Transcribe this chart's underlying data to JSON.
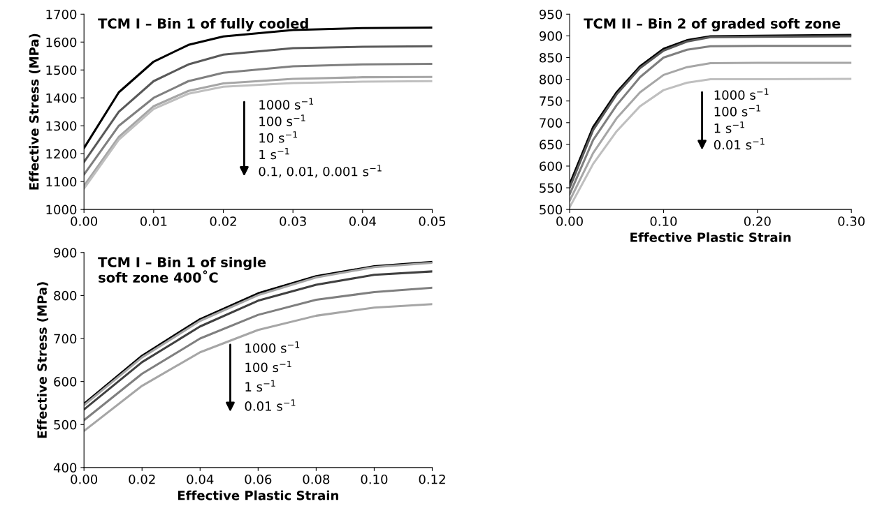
{
  "chart_data": [
    {
      "type": "line",
      "title": "TCM I – Bin 1 of fully cooled",
      "ylabel": "Effective Stress (MPa)",
      "x": [
        0,
        0.005,
        0.01,
        0.015,
        0.02,
        0.03,
        0.04,
        0.05
      ],
      "series": [
        {
          "color": "#000000",
          "values": [
            1220,
            1420,
            1530,
            1590,
            1620,
            1643,
            1650,
            1652
          ]
        },
        {
          "color": "#595959",
          "values": [
            1170,
            1350,
            1460,
            1520,
            1555,
            1578,
            1583,
            1585
          ]
        },
        {
          "color": "#7f7f7f",
          "values": [
            1125,
            1300,
            1400,
            1460,
            1490,
            1513,
            1520,
            1522
          ]
        },
        {
          "color": "#a6a6a6",
          "values": [
            1085,
            1260,
            1370,
            1425,
            1452,
            1468,
            1474,
            1475
          ]
        },
        {
          "color": "#bfbfbf",
          "values": [
            1075,
            1250,
            1360,
            1415,
            1440,
            1453,
            1458,
            1460
          ]
        }
      ],
      "xlim": [
        0,
        0.05
      ],
      "xticks": [
        {
          "value": 0,
          "label": "0.00"
        },
        {
          "value": 0.01,
          "label": "0.01"
        },
        {
          "value": 0.02,
          "label": "0.02"
        },
        {
          "value": 0.03,
          "label": "0.03"
        },
        {
          "value": 0.04,
          "label": "0.04"
        },
        {
          "value": 0.05,
          "label": "0.05"
        }
      ],
      "ylim": [
        1000,
        1700
      ],
      "yticks": [
        1000,
        1100,
        1200,
        1300,
        1400,
        1500,
        1600,
        1700
      ],
      "grid": false,
      "legend": false,
      "marker": "none",
      "line_style": "solid",
      "annotations": [
        "1000 s$^{−1}$",
        "100 s$^{−1}$",
        "10 s$^{−1}$",
        "1 s$^{−1}$",
        "0.1, 0.01, 0.001 s$^{−1}$"
      ]
    },
    {
      "type": "line",
      "title": "TCM II – Bin 2 of graded soft zone",
      "xlabel": "Effective Plastic Strain",
      "x": [
        0,
        0.025,
        0.05,
        0.075,
        0.1,
        0.125,
        0.15,
        0.2,
        0.3
      ],
      "series": [
        {
          "color": "#000000",
          "values": [
            558,
            690,
            770,
            830,
            870,
            890,
            899,
            900,
            902
          ]
        },
        {
          "color": "#595959",
          "values": [
            550,
            683,
            765,
            826,
            866,
            887,
            897,
            898,
            899
          ]
        },
        {
          "color": "#7f7f7f",
          "values": [
            535,
            660,
            740,
            805,
            850,
            868,
            876,
            877,
            877
          ]
        },
        {
          "color": "#a6a6a6",
          "values": [
            520,
            630,
            710,
            770,
            810,
            828,
            837,
            838,
            838
          ]
        },
        {
          "color": "#bfbfbf",
          "values": [
            505,
            605,
            680,
            738,
            775,
            792,
            800,
            800,
            801
          ]
        }
      ],
      "xlim": [
        0,
        0.3
      ],
      "xticks": [
        {
          "value": 0,
          "label": "0.00"
        },
        {
          "value": 0.1,
          "label": "0.10"
        },
        {
          "value": 0.2,
          "label": "0.20"
        },
        {
          "value": 0.3,
          "label": "0.30"
        }
      ],
      "ylim": [
        500,
        950
      ],
      "yticks": [
        500,
        550,
        600,
        650,
        700,
        750,
        800,
        850,
        900,
        950
      ],
      "grid": false,
      "legend": false,
      "marker": "none",
      "line_style": "solid",
      "annotations": [
        "1000 s$^{−1}$",
        "100 s$^{−1}$",
        "1 s$^{−1}$",
        "0.01 s$^{−1}$"
      ]
    },
    {
      "type": "line",
      "title": "TCM I – Bin 1 of single\nsoft zone 400˚C",
      "xlabel": "Effective Plastic Strain",
      "ylabel": "Effective Stress (MPa)",
      "x": [
        0,
        0.02,
        0.04,
        0.06,
        0.08,
        0.1,
        0.12
      ],
      "series": [
        {
          "color": "#000000",
          "values": [
            548,
            660,
            745,
            805,
            845,
            868,
            878
          ]
        },
        {
          "color": "#a6a6a6",
          "values": [
            545,
            656,
            741,
            801,
            842,
            866,
            876
          ]
        },
        {
          "color": "#404040",
          "values": [
            535,
            645,
            728,
            788,
            825,
            848,
            856
          ]
        },
        {
          "color": "#7f7f7f",
          "values": [
            510,
            618,
            700,
            755,
            790,
            808,
            818
          ]
        },
        {
          "color": "#a6a6a6",
          "values": [
            485,
            590,
            668,
            720,
            753,
            772,
            780
          ]
        }
      ],
      "xlim": [
        0,
        0.12
      ],
      "xticks": [
        {
          "value": 0,
          "label": "0.00"
        },
        {
          "value": 0.02,
          "label": "0.02"
        },
        {
          "value": 0.04,
          "label": "0.04"
        },
        {
          "value": 0.06,
          "label": "0.06"
        },
        {
          "value": 0.08,
          "label": "0.08"
        },
        {
          "value": 0.1,
          "label": "0.10"
        },
        {
          "value": 0.12,
          "label": "0.12"
        }
      ],
      "ylim": [
        400,
        900
      ],
      "yticks": [
        400,
        500,
        600,
        700,
        800,
        900
      ],
      "grid": false,
      "legend": false,
      "marker": "none",
      "line_style": "solid",
      "annotations": [
        "1000 s$^{−1}$",
        "100 s$^{−1}$",
        "1 s$^{−1}$",
        "0.01 s$^{−1}$"
      ]
    }
  ]
}
